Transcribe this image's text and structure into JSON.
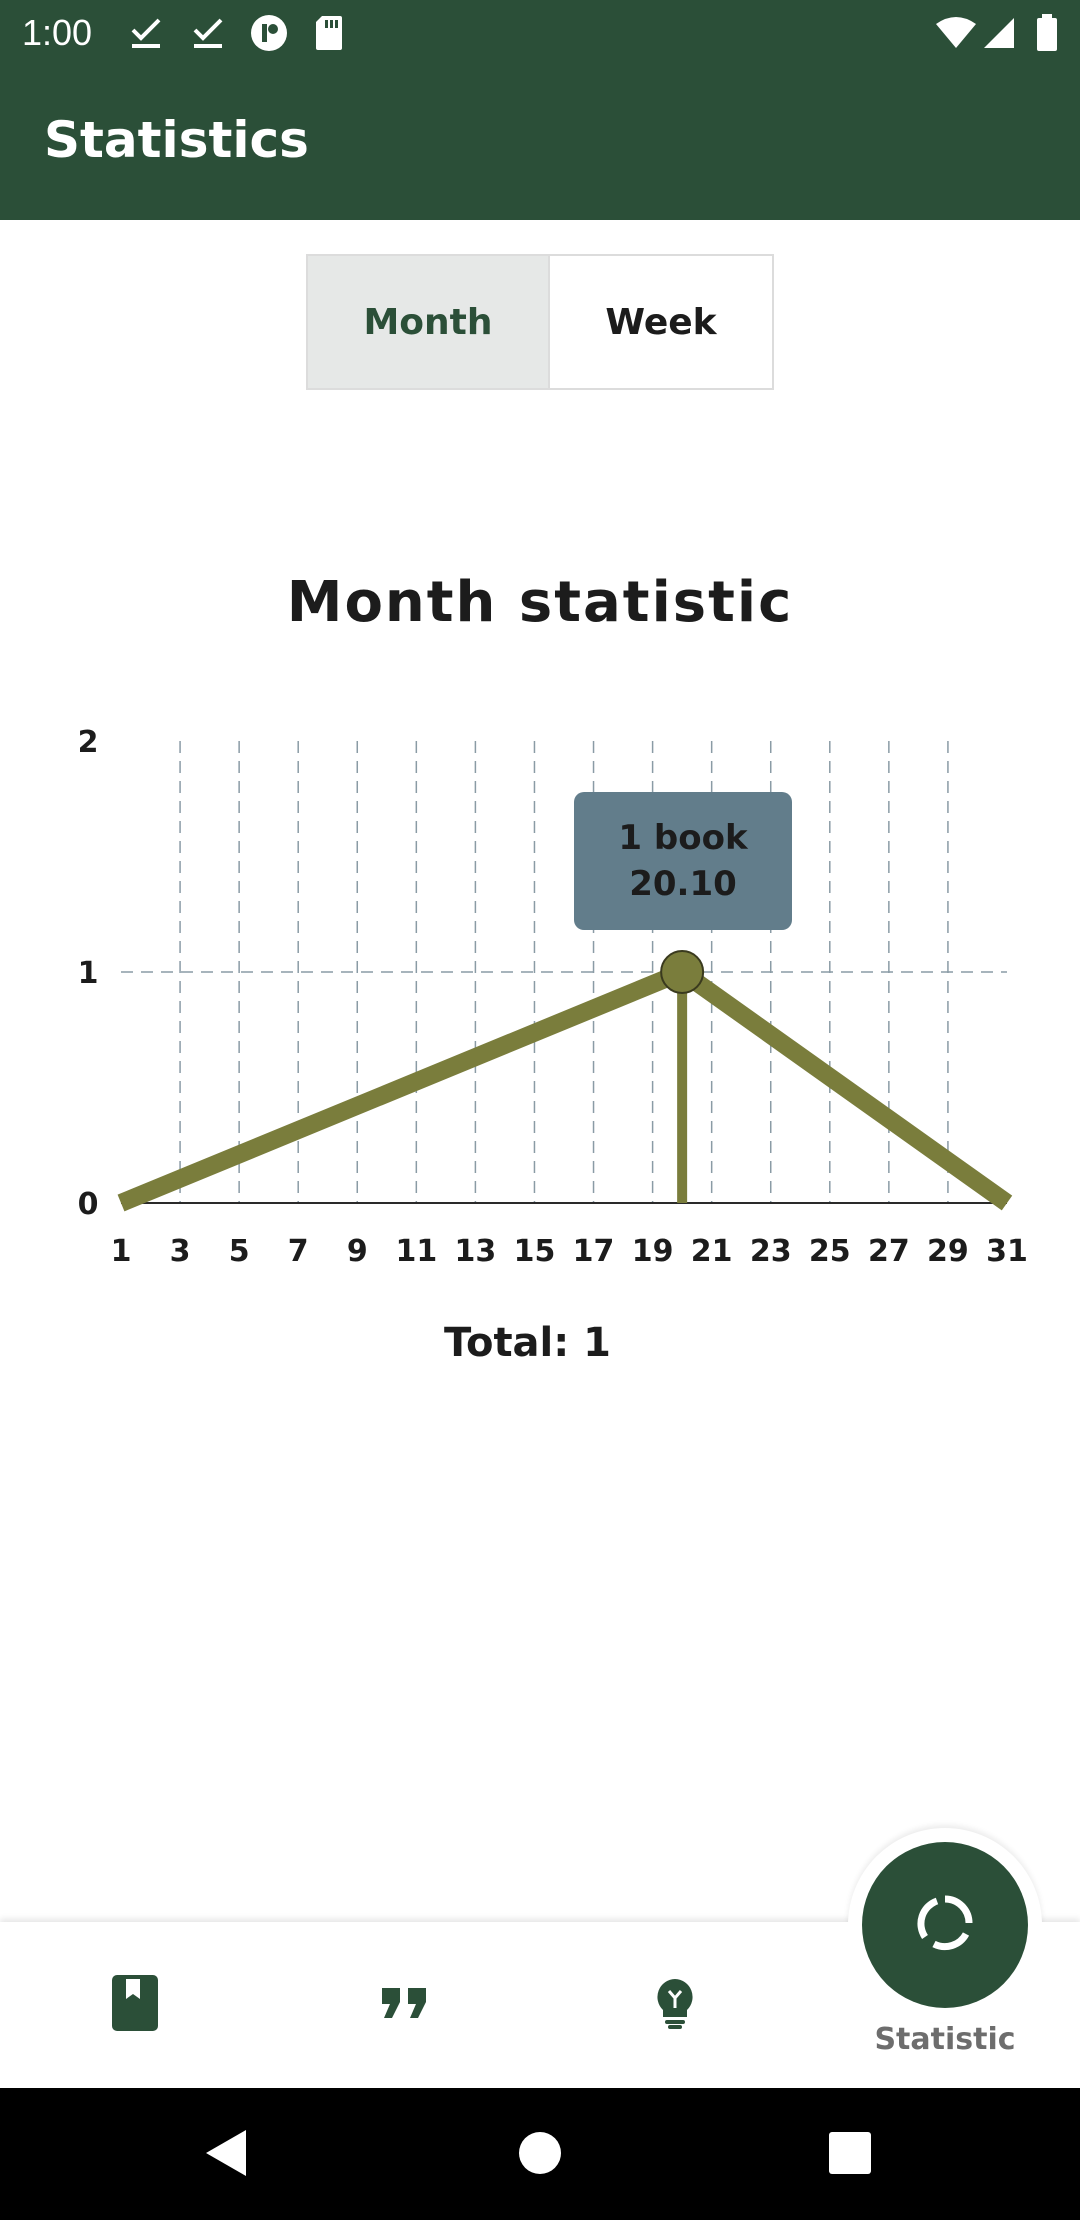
{
  "status_bar": {
    "time": "1:00",
    "left_icons": [
      "check-icon",
      "check-icon",
      "record-icon",
      "sd-card-icon"
    ],
    "right_icons": [
      "wifi-icon",
      "signal-icon",
      "battery-icon"
    ]
  },
  "app_bar": {
    "title": "Statistics"
  },
  "period_toggle": {
    "selected": "Month",
    "options": [
      "Month",
      "Week"
    ]
  },
  "chart_data": {
    "type": "line",
    "title": "Month statistic",
    "x": [
      1,
      20,
      31
    ],
    "values": [
      0,
      1,
      0
    ],
    "x_ticks": [
      "1",
      "3",
      "5",
      "7",
      "9",
      "11",
      "13",
      "15",
      "17",
      "19",
      "21",
      "23",
      "25",
      "27",
      "29",
      "31"
    ],
    "y_ticks": [
      "0",
      "1",
      "2"
    ],
    "xlim": [
      1,
      31
    ],
    "ylim": [
      0,
      2
    ],
    "grid": true,
    "highlighted_point": {
      "x": 20,
      "y": 1
    },
    "tooltip": {
      "line1": "1 book",
      "line2": "20.10"
    },
    "series_color": "#7a7d3c"
  },
  "total": "Total: 1",
  "bottom_nav": {
    "items": [
      {
        "icon": "book-icon"
      },
      {
        "icon": "quote-icon"
      },
      {
        "icon": "lightbulb-icon"
      },
      {
        "icon": "statistic-icon",
        "label": "Statistic",
        "active": true
      }
    ]
  },
  "colors": {
    "primary": "#2b4f38",
    "series": "#7a7d3c",
    "tooltip": "#627d8b"
  }
}
